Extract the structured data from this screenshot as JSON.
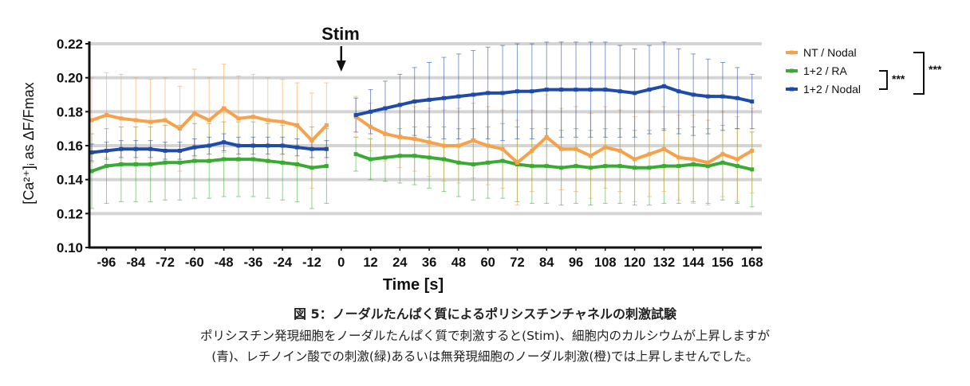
{
  "chart_data": {
    "type": "line",
    "ylabel": "[Ca²⁺]ᵢ as ΔF/Fmax",
    "xlabel": "Time [s]",
    "ylim": [
      0.1,
      0.22
    ],
    "yticks": [
      "0.10",
      "0.12",
      "0.14",
      "0.16",
      "0.18",
      "0.20",
      "0.22"
    ],
    "xlim": [
      -103,
      172
    ],
    "xticks": [
      "-96",
      "-84",
      "-72",
      "-60",
      "-48",
      "-36",
      "-24",
      "-12",
      "0",
      "12",
      "24",
      "36",
      "48",
      "60",
      "72",
      "84",
      "96",
      "108",
      "120",
      "132",
      "144",
      "156",
      "168"
    ],
    "grid": "horizontal",
    "legend_position": "top-right",
    "stimulus": {
      "label": "Stim",
      "x": 0
    },
    "series": [
      {
        "name": "NT / Nodal",
        "color": "#f5a24a",
        "x": [
          -102,
          -96,
          -90,
          -84,
          -78,
          -72,
          -66,
          -60,
          -54,
          -48,
          -42,
          -36,
          -30,
          -24,
          -18,
          -12,
          -6,
          6,
          12,
          18,
          24,
          30,
          36,
          42,
          48,
          54,
          60,
          66,
          72,
          78,
          84,
          90,
          96,
          102,
          108,
          114,
          120,
          126,
          132,
          138,
          144,
          150,
          156,
          162,
          168
        ],
        "y": [
          0.175,
          0.178,
          0.176,
          0.175,
          0.174,
          0.175,
          0.17,
          0.179,
          0.175,
          0.182,
          0.176,
          0.177,
          0.175,
          0.174,
          0.172,
          0.163,
          0.172,
          0.177,
          0.171,
          0.167,
          0.165,
          0.164,
          0.162,
          0.16,
          0.16,
          0.163,
          0.16,
          0.158,
          0.15,
          0.157,
          0.165,
          0.158,
          0.158,
          0.154,
          0.159,
          0.157,
          0.152,
          0.155,
          0.158,
          0.153,
          0.152,
          0.15,
          0.155,
          0.152,
          0.157
        ],
        "error": [
          0.025,
          0.025,
          0.026,
          0.025,
          0.025,
          0.025,
          0.025,
          0.026,
          0.025,
          0.026,
          0.025,
          0.025,
          0.025,
          0.025,
          0.025,
          0.028,
          0.025,
          0.012,
          0.014,
          0.016,
          0.018,
          0.019,
          0.02,
          0.021,
          0.022,
          0.022,
          0.023,
          0.023,
          0.025,
          0.024,
          0.025,
          0.024,
          0.025,
          0.025,
          0.024,
          0.024,
          0.025,
          0.025,
          0.025,
          0.025,
          0.026,
          0.025,
          0.025,
          0.025,
          0.025
        ]
      },
      {
        "name": "1+2 / RA",
        "color": "#3aaa35",
        "x": [
          -102,
          -96,
          -90,
          -84,
          -78,
          -72,
          -66,
          -60,
          -54,
          -48,
          -42,
          -36,
          -30,
          -24,
          -18,
          -12,
          -6,
          6,
          12,
          18,
          24,
          30,
          36,
          42,
          48,
          54,
          60,
          66,
          72,
          78,
          84,
          90,
          96,
          102,
          108,
          114,
          120,
          126,
          132,
          138,
          144,
          150,
          156,
          162,
          168
        ],
        "y": [
          0.145,
          0.148,
          0.149,
          0.149,
          0.149,
          0.15,
          0.15,
          0.151,
          0.151,
          0.152,
          0.152,
          0.152,
          0.151,
          0.15,
          0.149,
          0.147,
          0.148,
          0.155,
          0.152,
          0.153,
          0.154,
          0.154,
          0.153,
          0.152,
          0.15,
          0.149,
          0.15,
          0.151,
          0.149,
          0.148,
          0.148,
          0.147,
          0.148,
          0.147,
          0.148,
          0.148,
          0.147,
          0.147,
          0.148,
          0.148,
          0.149,
          0.148,
          0.15,
          0.148,
          0.146
        ],
        "error": [
          0.022,
          0.022,
          0.022,
          0.022,
          0.022,
          0.022,
          0.022,
          0.022,
          0.022,
          0.022,
          0.022,
          0.022,
          0.022,
          0.022,
          0.022,
          0.024,
          0.022,
          0.01,
          0.012,
          0.014,
          0.016,
          0.017,
          0.018,
          0.019,
          0.02,
          0.021,
          0.021,
          0.022,
          0.022,
          0.022,
          0.022,
          0.022,
          0.022,
          0.022,
          0.022,
          0.022,
          0.022,
          0.022,
          0.022,
          0.022,
          0.022,
          0.022,
          0.022,
          0.022,
          0.022
        ]
      },
      {
        "name": "1+2 / Nodal",
        "color": "#1f4aa8",
        "x": [
          -102,
          -96,
          -90,
          -84,
          -78,
          -72,
          -66,
          -60,
          -54,
          -48,
          -42,
          -36,
          -30,
          -24,
          -18,
          -12,
          -6,
          6,
          12,
          18,
          24,
          30,
          36,
          42,
          48,
          54,
          60,
          66,
          72,
          78,
          84,
          90,
          96,
          102,
          108,
          114,
          120,
          126,
          132,
          138,
          144,
          150,
          156,
          162,
          168
        ],
        "y": [
          0.156,
          0.157,
          0.158,
          0.158,
          0.158,
          0.157,
          0.157,
          0.159,
          0.16,
          0.162,
          0.16,
          0.16,
          0.16,
          0.16,
          0.159,
          0.158,
          0.158,
          0.178,
          0.18,
          0.182,
          0.184,
          0.186,
          0.187,
          0.188,
          0.189,
          0.19,
          0.191,
          0.191,
          0.192,
          0.192,
          0.193,
          0.193,
          0.193,
          0.193,
          0.193,
          0.192,
          0.191,
          0.193,
          0.195,
          0.192,
          0.19,
          0.189,
          0.189,
          0.188,
          0.186
        ],
        "error": [
          0.005,
          0.005,
          0.005,
          0.005,
          0.005,
          0.005,
          0.005,
          0.005,
          0.005,
          0.005,
          0.005,
          0.005,
          0.005,
          0.005,
          0.005,
          0.005,
          0.005,
          0.01,
          0.013,
          0.016,
          0.018,
          0.02,
          0.022,
          0.024,
          0.025,
          0.026,
          0.027,
          0.028,
          0.028,
          0.028,
          0.028,
          0.028,
          0.028,
          0.028,
          0.028,
          0.027,
          0.026,
          0.026,
          0.026,
          0.025,
          0.024,
          0.022,
          0.02,
          0.018,
          0.016
        ]
      }
    ],
    "significance": [
      "***",
      "***"
    ]
  },
  "caption": {
    "title": "図 5：ノーダルたんぱく質によるポリシスチンチャネルの刺激試験",
    "line1": "ポリシスチン発現細胞をノーダルたんぱく質で刺激すると(Stim)、細胞内のカルシウムが上昇しますが",
    "line2": "(青)、レチノイン酸での刺激(緑)あるいは無発現細胞のノーダル刺激(橙)では上昇しませんでした。"
  }
}
